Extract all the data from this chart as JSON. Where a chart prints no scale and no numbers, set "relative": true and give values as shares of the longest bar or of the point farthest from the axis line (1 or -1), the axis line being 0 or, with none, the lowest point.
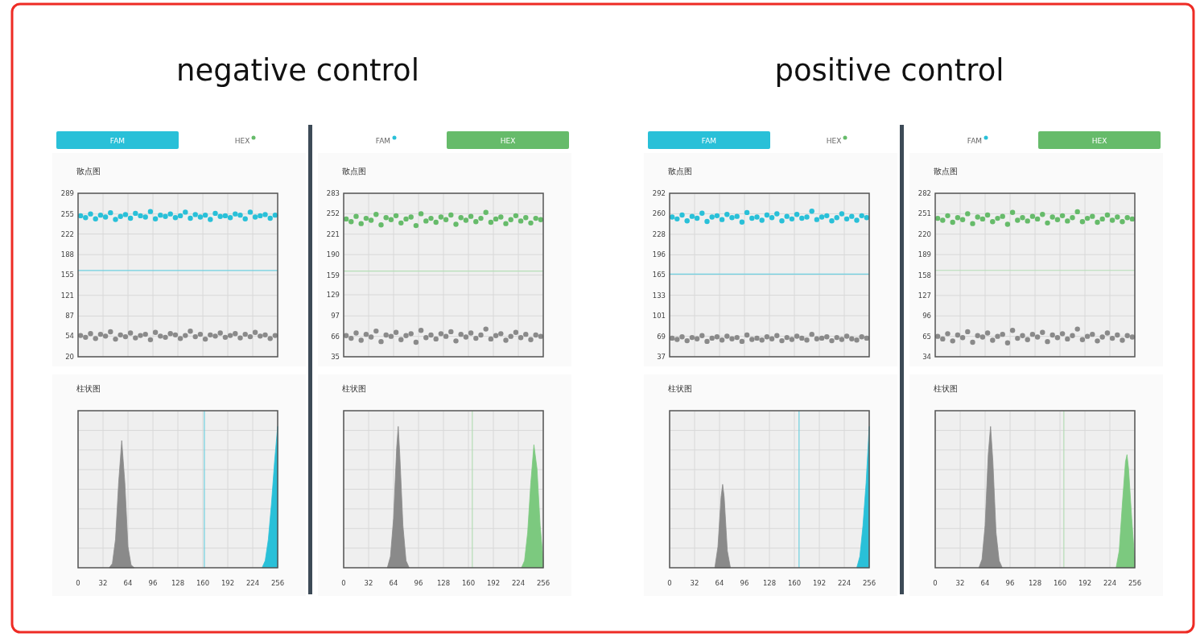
{
  "chart_data": [
    {
      "type": "other",
      "title": "negative control"
    },
    {
      "type": "scatter",
      "title": "散点图",
      "annotations": [
        "FAM",
        "HEX"
      ],
      "categories": [
        null,
        null,
        null,
        null,
        null,
        null,
        null,
        null,
        null,
        null,
        null,
        null,
        null,
        null,
        null,
        null,
        null,
        null,
        null,
        null,
        null,
        null,
        null,
        null,
        null,
        null,
        null,
        null,
        null,
        null,
        null,
        null,
        null,
        null,
        null,
        null,
        null,
        null,
        null,
        null
      ],
      "ylim": [
        20,
        289
      ],
      "yticks": [
        20,
        54,
        87,
        121,
        155,
        188,
        222,
        255,
        289
      ],
      "grid": true,
      "marker": "circle",
      "tick_labels": "y",
      "series": [
        {
          "color": "#8a8a8a",
          "values": [
            55,
            52,
            58,
            50,
            57,
            54,
            61,
            49,
            56,
            53,
            59,
            51,
            55,
            57,
            48,
            60,
            54,
            52,
            58,
            56,
            50,
            55,
            62,
            53,
            57,
            49,
            56,
            54,
            59,
            52,
            55,
            58,
            51,
            57,
            53,
            60,
            54,
            56,
            50,
            55
          ]
        },
        {
          "color": "#29c0d8",
          "values": [
            252,
            249,
            255,
            247,
            253,
            250,
            257,
            246,
            251,
            254,
            248,
            256,
            252,
            250,
            259,
            247,
            253,
            251,
            255,
            249,
            252,
            258,
            248,
            254,
            250,
            253,
            246,
            256,
            251,
            252,
            249,
            255,
            253,
            247,
            258,
            250,
            252,
            254,
            248,
            253
          ]
        }
      ],
      "ref_lines": [
        {
          "axis": "y",
          "value": 162,
          "color": "#6fd0e0"
        }
      ]
    },
    {
      "type": "scatter",
      "title": "散点图",
      "annotations": [
        "FAM",
        "HEX"
      ],
      "categories": [
        null,
        null,
        null,
        null,
        null,
        null,
        null,
        null,
        null,
        null,
        null,
        null,
        null,
        null,
        null,
        null,
        null,
        null,
        null,
        null,
        null,
        null,
        null,
        null,
        null,
        null,
        null,
        null,
        null,
        null,
        null,
        null,
        null,
        null,
        null,
        null,
        null,
        null,
        null,
        null
      ],
      "ylim": [
        35,
        283
      ],
      "yticks": [
        35,
        66,
        97,
        129,
        159,
        190,
        221,
        252,
        283
      ],
      "grid": true,
      "marker": "circle",
      "tick_labels": "y",
      "series": [
        {
          "color": "#8a8a8a",
          "values": [
            67,
            63,
            71,
            60,
            69,
            65,
            74,
            58,
            68,
            66,
            72,
            61,
            67,
            70,
            57,
            75,
            64,
            68,
            62,
            70,
            66,
            73,
            59,
            69,
            65,
            71,
            63,
            68,
            77,
            62,
            67,
            70,
            60,
            66,
            72,
            64,
            69,
            61,
            68,
            66
          ]
        },
        {
          "color": "#66bb6a",
          "values": [
            244,
            240,
            248,
            237,
            245,
            242,
            251,
            235,
            246,
            243,
            249,
            238,
            244,
            247,
            234,
            252,
            241,
            245,
            239,
            247,
            243,
            250,
            236,
            246,
            242,
            248,
            240,
            245,
            254,
            239,
            244,
            247,
            237,
            243,
            249,
            241,
            246,
            238,
            245,
            243
          ]
        }
      ],
      "ref_lines": [
        {
          "axis": "y",
          "value": 165,
          "color": "#b5ddb6"
        }
      ]
    },
    {
      "type": "area",
      "title": "柱状图",
      "relative": true,
      "xlim": [
        0,
        256
      ],
      "xticks": [
        0,
        32,
        64,
        96,
        128,
        160,
        192,
        224,
        256
      ],
      "grid": true,
      "tick_labels": "x",
      "series": [
        {
          "color": "#8a8a8a",
          "x": [
            40,
            44,
            48,
            52,
            56,
            60,
            64,
            68,
            72
          ],
          "values": [
            0,
            0.03,
            0.2,
            0.6,
            0.9,
            0.6,
            0.15,
            0.02,
            0
          ]
        },
        {
          "color": "#29c0d8",
          "x": [
            236,
            240,
            244,
            248,
            252,
            256
          ],
          "values": [
            0,
            0.05,
            0.2,
            0.45,
            0.75,
            1
          ]
        }
      ],
      "ref_lines": [
        {
          "axis": "x",
          "value": 162,
          "color": "#6fd0e0"
        }
      ]
    },
    {
      "type": "area",
      "title": "柱状图",
      "relative": true,
      "xlim": [
        0,
        256
      ],
      "xticks": [
        0,
        32,
        64,
        96,
        128,
        160,
        192,
        224,
        256
      ],
      "grid": true,
      "tick_labels": "x",
      "series": [
        {
          "color": "#8a8a8a",
          "x": [
            56,
            60,
            64,
            68,
            70,
            72,
            76,
            80,
            84
          ],
          "values": [
            0,
            0.08,
            0.35,
            0.85,
            1,
            0.8,
            0.3,
            0.05,
            0
          ]
        },
        {
          "color": "#7cc97f",
          "x": [
            228,
            232,
            236,
            240,
            244,
            248,
            252,
            256
          ],
          "values": [
            0,
            0.05,
            0.25,
            0.6,
            0.87,
            0.7,
            0.3,
            0.05
          ]
        }
      ],
      "ref_lines": [
        {
          "axis": "x",
          "value": 165,
          "color": "#b5ddb6"
        }
      ]
    },
    {
      "type": "other",
      "title": "positive control"
    },
    {
      "type": "scatter",
      "title": "散点图",
      "annotations": [
        "FAM",
        "HEX"
      ],
      "categories": [
        null,
        null,
        null,
        null,
        null,
        null,
        null,
        null,
        null,
        null,
        null,
        null,
        null,
        null,
        null,
        null,
        null,
        null,
        null,
        null,
        null,
        null,
        null,
        null,
        null,
        null,
        null,
        null,
        null,
        null,
        null,
        null,
        null,
        null,
        null,
        null,
        null,
        null,
        null,
        null
      ],
      "ylim": [
        37,
        292
      ],
      "yticks": [
        37,
        69,
        101,
        133,
        165,
        196,
        228,
        260,
        292
      ],
      "grid": true,
      "marker": "circle",
      "tick_labels": "y",
      "series": [
        {
          "color": "#8a8a8a",
          "values": [
            66,
            64,
            68,
            62,
            67,
            65,
            70,
            61,
            66,
            68,
            63,
            69,
            65,
            67,
            61,
            71,
            64,
            66,
            63,
            68,
            65,
            70,
            62,
            67,
            64,
            69,
            66,
            63,
            72,
            65,
            66,
            68,
            62,
            67,
            64,
            69,
            65,
            63,
            68,
            66
          ]
        },
        {
          "color": "#29c0d8",
          "values": [
            255,
            252,
            258,
            249,
            256,
            253,
            261,
            248,
            255,
            257,
            251,
            259,
            254,
            256,
            247,
            262,
            253,
            255,
            250,
            258,
            254,
            260,
            249,
            256,
            252,
            259,
            253,
            255,
            264,
            251,
            255,
            257,
            249,
            254,
            260,
            252,
            256,
            250,
            257,
            254
          ]
        }
      ],
      "ref_lines": [
        {
          "axis": "y",
          "value": 166,
          "color": "#6fd0e0"
        }
      ]
    },
    {
      "type": "scatter",
      "title": "散点图",
      "annotations": [
        "FAM",
        "HEX"
      ],
      "categories": [
        null,
        null,
        null,
        null,
        null,
        null,
        null,
        null,
        null,
        null,
        null,
        null,
        null,
        null,
        null,
        null,
        null,
        null,
        null,
        null,
        null,
        null,
        null,
        null,
        null,
        null,
        null,
        null,
        null,
        null,
        null,
        null,
        null,
        null,
        null,
        null,
        null,
        null,
        null,
        null
      ],
      "ylim": [
        34,
        282
      ],
      "yticks": [
        34,
        65,
        96,
        127,
        158,
        189,
        220,
        251,
        282
      ],
      "grid": true,
      "marker": "circle",
      "tick_labels": "y",
      "series": [
        {
          "color": "#8a8a8a",
          "values": [
            65,
            61,
            69,
            58,
            67,
            63,
            72,
            56,
            66,
            64,
            70,
            59,
            65,
            68,
            55,
            74,
            62,
            66,
            60,
            68,
            64,
            71,
            57,
            67,
            63,
            69,
            61,
            66,
            76,
            60,
            65,
            68,
            58,
            64,
            70,
            62,
            67,
            59,
            66,
            64
          ]
        },
        {
          "color": "#66bb6a",
          "values": [
            244,
            241,
            248,
            238,
            245,
            242,
            251,
            236,
            246,
            243,
            249,
            239,
            244,
            247,
            235,
            253,
            241,
            245,
            240,
            247,
            243,
            250,
            237,
            246,
            242,
            248,
            240,
            245,
            254,
            239,
            244,
            247,
            238,
            243,
            249,
            241,
            246,
            239,
            245,
            243
          ]
        }
      ],
      "ref_lines": [
        {
          "axis": "y",
          "value": 165,
          "color": "#b5ddb6"
        }
      ]
    },
    {
      "type": "area",
      "title": "柱状图",
      "relative": true,
      "xlim": [
        0,
        256
      ],
      "xticks": [
        0,
        32,
        64,
        96,
        128,
        160,
        192,
        224,
        256
      ],
      "grid": true,
      "tick_labels": "x",
      "series": [
        {
          "color": "#8a8a8a",
          "x": [
            58,
            62,
            66,
            68,
            70,
            74,
            78
          ],
          "values": [
            0,
            0.15,
            0.5,
            0.59,
            0.5,
            0.12,
            0
          ]
        },
        {
          "color": "#29c0d8",
          "x": [
            240,
            244,
            248,
            252,
            256
          ],
          "values": [
            0,
            0.08,
            0.3,
            0.6,
            1
          ]
        }
      ],
      "ref_lines": [
        {
          "axis": "x",
          "value": 166,
          "color": "#6fd0e0"
        }
      ]
    },
    {
      "type": "area",
      "title": "柱状图",
      "relative": true,
      "xlim": [
        0,
        256
      ],
      "xticks": [
        0,
        32,
        64,
        96,
        128,
        160,
        192,
        224,
        256
      ],
      "grid": true,
      "tick_labels": "x",
      "series": [
        {
          "color": "#8a8a8a",
          "x": [
            56,
            60,
            64,
            68,
            71,
            74,
            78,
            82,
            86
          ],
          "values": [
            0,
            0.06,
            0.3,
            0.8,
            1,
            0.75,
            0.25,
            0.05,
            0
          ]
        },
        {
          "color": "#7cc97f",
          "x": [
            232,
            236,
            240,
            244,
            246,
            248,
            252,
            256
          ],
          "values": [
            0,
            0.12,
            0.45,
            0.75,
            0.8,
            0.7,
            0.35,
            0.05
          ]
        }
      ],
      "ref_lines": [
        {
          "axis": "x",
          "value": 165,
          "color": "#b5ddb6"
        }
      ]
    }
  ]
}
